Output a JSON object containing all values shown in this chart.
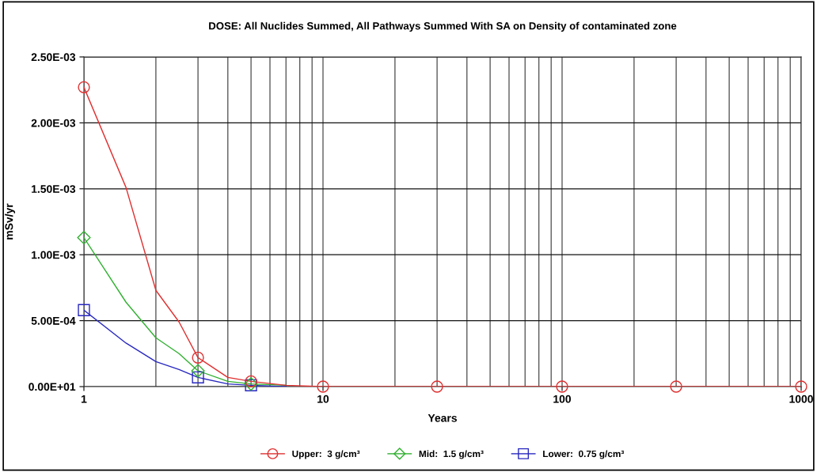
{
  "chart_data": {
    "type": "line",
    "title": "DOSE: All Nuclides Summed, All Pathways Summed With SA on Density of contaminated zone",
    "xlabel": "Years",
    "ylabel": "mSv/yr",
    "log": "x",
    "x": [
      1,
      1.5,
      2,
      2.5,
      3,
      4,
      5,
      7,
      10,
      30,
      100,
      300,
      1000
    ],
    "xlim": [
      1,
      1000
    ],
    "xticks": [
      1,
      10,
      100,
      1000
    ],
    "ylim": [
      0,
      0.0025
    ],
    "yticks": [
      {
        "value": 0,
        "label": "0.00E+01"
      },
      {
        "value": 0.0005,
        "label": "5.00E-04"
      },
      {
        "value": 0.001,
        "label": "1.00E-03"
      },
      {
        "value": 0.0015,
        "label": "1.50E-03"
      },
      {
        "value": 0.002,
        "label": "2.00E-03"
      },
      {
        "value": 0.0025,
        "label": "2.50E-03"
      }
    ],
    "grid": true,
    "legend": "bottom",
    "series": [
      {
        "name": "Upper:  3 g/cm³",
        "color": "#e03030",
        "values": [
          0.00227,
          0.00151,
          0.00073,
          0.00049,
          0.00022,
          7e-05,
          4e-05,
          1e-05,
          0,
          0,
          0,
          0,
          0
        ]
      },
      {
        "name": "Mid:  1.5 g/cm³",
        "color": "#30b030",
        "values": [
          0.00113,
          0.00064,
          0.00037,
          0.00025,
          0.00012,
          4e-05,
          2e-05,
          1e-05,
          null,
          null,
          null,
          null,
          null
        ]
      },
      {
        "name": "Lower:  0.75 g/cm³",
        "color": "#2828c0",
        "values": [
          0.00058,
          0.00033,
          0.00019,
          0.00013,
          7e-05,
          2e-05,
          1e-05,
          0,
          null,
          null,
          null,
          null,
          null
        ]
      },
      {
        "type": "scatter",
        "color": "#e03030",
        "marker": "circle",
        "x": [
          1,
          3,
          5,
          10,
          30,
          100,
          300,
          1000
        ],
        "values": [
          0.00227,
          0.00022,
          4e-05,
          0,
          0,
          0,
          0,
          0
        ]
      },
      {
        "type": "scatter",
        "color": "#30b030",
        "marker": "diamond",
        "x": [
          1,
          3,
          5
        ],
        "values": [
          0.00113,
          0.00012,
          2e-05
        ]
      },
      {
        "type": "scatter",
        "color": "#2828c0",
        "marker": "square",
        "x": [
          1,
          3,
          5
        ],
        "values": [
          0.00058,
          7e-05,
          1e-05
        ]
      }
    ]
  }
}
